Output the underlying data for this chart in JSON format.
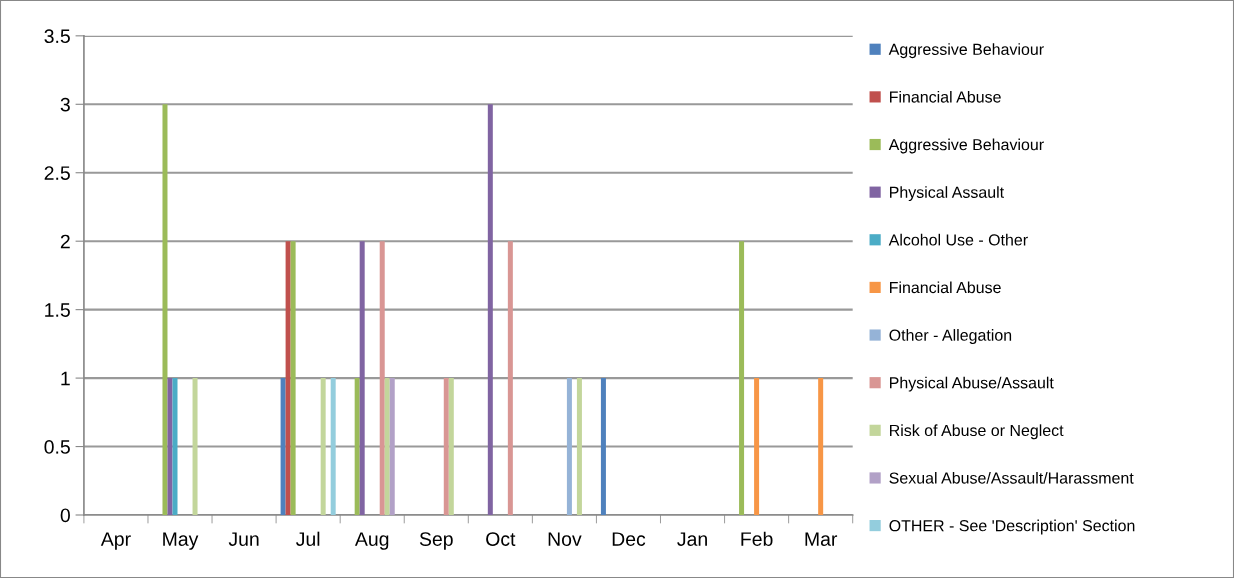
{
  "chart_data": {
    "type": "bar",
    "categories": [
      "Apr",
      "May",
      "Jun",
      "Jul",
      "Aug",
      "Sep",
      "Oct",
      "Nov",
      "Dec",
      "Jan",
      "Feb",
      "Mar"
    ],
    "series": [
      {
        "name": "Aggressive Behaviour",
        "color": "#4f81bd",
        "values": [
          null,
          null,
          null,
          1,
          null,
          null,
          null,
          null,
          1,
          null,
          null,
          null
        ]
      },
      {
        "name": "Financial Abuse",
        "color": "#c0504d",
        "values": [
          null,
          null,
          null,
          2,
          null,
          null,
          null,
          null,
          null,
          null,
          null,
          null
        ]
      },
      {
        "name": "Aggressive Behaviour",
        "color": "#9bbb59",
        "values": [
          null,
          3,
          null,
          2,
          1,
          null,
          null,
          null,
          null,
          null,
          2,
          null
        ]
      },
      {
        "name": "Physical Assault",
        "color": "#8064a2",
        "values": [
          null,
          1,
          null,
          null,
          2,
          null,
          3,
          null,
          null,
          null,
          null,
          null
        ]
      },
      {
        "name": "Alcohol Use - Other",
        "color": "#4bacc6",
        "values": [
          null,
          1,
          null,
          null,
          null,
          null,
          null,
          null,
          null,
          null,
          null,
          null
        ]
      },
      {
        "name": "Financial Abuse",
        "color": "#f79646",
        "values": [
          null,
          null,
          null,
          null,
          null,
          null,
          null,
          null,
          null,
          null,
          1,
          1
        ]
      },
      {
        "name": "Other - Allegation",
        "color": "#95b3d7",
        "values": [
          null,
          null,
          null,
          null,
          null,
          null,
          null,
          1,
          null,
          null,
          null,
          null
        ]
      },
      {
        "name": "Physical Abuse/Assault",
        "color": "#d99694",
        "values": [
          null,
          null,
          null,
          null,
          2,
          1,
          2,
          null,
          null,
          null,
          null,
          null
        ]
      },
      {
        "name": "Risk of Abuse or Neglect",
        "color": "#c3d69b",
        "values": [
          null,
          1,
          null,
          1,
          1,
          1,
          null,
          1,
          null,
          null,
          null,
          null
        ]
      },
      {
        "name": "Sexual Abuse/Assault/Harassment",
        "color": "#b2a1c7",
        "values": [
          null,
          null,
          null,
          null,
          1,
          null,
          null,
          null,
          null,
          null,
          null,
          null
        ]
      },
      {
        "name": "OTHER - See 'Description' Section",
        "color": "#93cddd",
        "values": [
          null,
          null,
          null,
          1,
          null,
          null,
          null,
          null,
          null,
          null,
          null,
          null
        ]
      }
    ],
    "ylim": [
      0,
      3.5
    ],
    "yticks": [
      0,
      0.5,
      1,
      1.5,
      2,
      2.5,
      3,
      3.5
    ],
    "grid": "y",
    "legend": "right"
  }
}
